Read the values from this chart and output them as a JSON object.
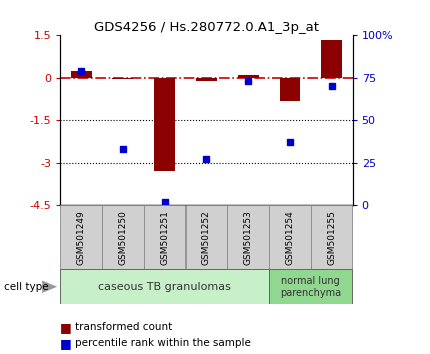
{
  "title": "GDS4256 / Hs.280772.0.A1_3p_at",
  "samples": [
    "GSM501249",
    "GSM501250",
    "GSM501251",
    "GSM501252",
    "GSM501253",
    "GSM501254",
    "GSM501255"
  ],
  "red_values": [
    0.25,
    -0.05,
    -3.3,
    -0.12,
    0.1,
    -0.8,
    1.35
  ],
  "blue_values": [
    79,
    33,
    2,
    27,
    73,
    37,
    70
  ],
  "ylim_left": [
    -4.5,
    1.5
  ],
  "ylim_right": [
    0,
    100
  ],
  "yticks_left": [
    1.5,
    0,
    -1.5,
    -3,
    -4.5
  ],
  "ytick_labels_left": [
    "1.5",
    "0",
    "-1.5",
    "-3",
    "-4.5"
  ],
  "yticks_right": [
    0,
    25,
    50,
    75,
    100
  ],
  "ytick_labels_right": [
    "0",
    "25",
    "50",
    "75",
    "100%"
  ],
  "hline_dotted": [
    -1.5,
    -3.0
  ],
  "hline_dashed": 0.0,
  "group1_label": "caseous TB granulomas",
  "group1_count": 5,
  "group2_label": "normal lung\nparenchyma",
  "group2_count": 2,
  "group1_color": "#c8f0c8",
  "group2_color": "#90d890",
  "cell_type_label": "cell type",
  "legend_red": "transformed count",
  "legend_blue": "percentile rank within the sample",
  "bar_color": "#8b0000",
  "dot_color": "#0000cc",
  "bg_color": "#ffffff",
  "axis_color_left": "#cc0000",
  "axis_color_right": "#0000cc",
  "tick_box_color": "#d0d0d0",
  "tick_box_edge": "#888888"
}
